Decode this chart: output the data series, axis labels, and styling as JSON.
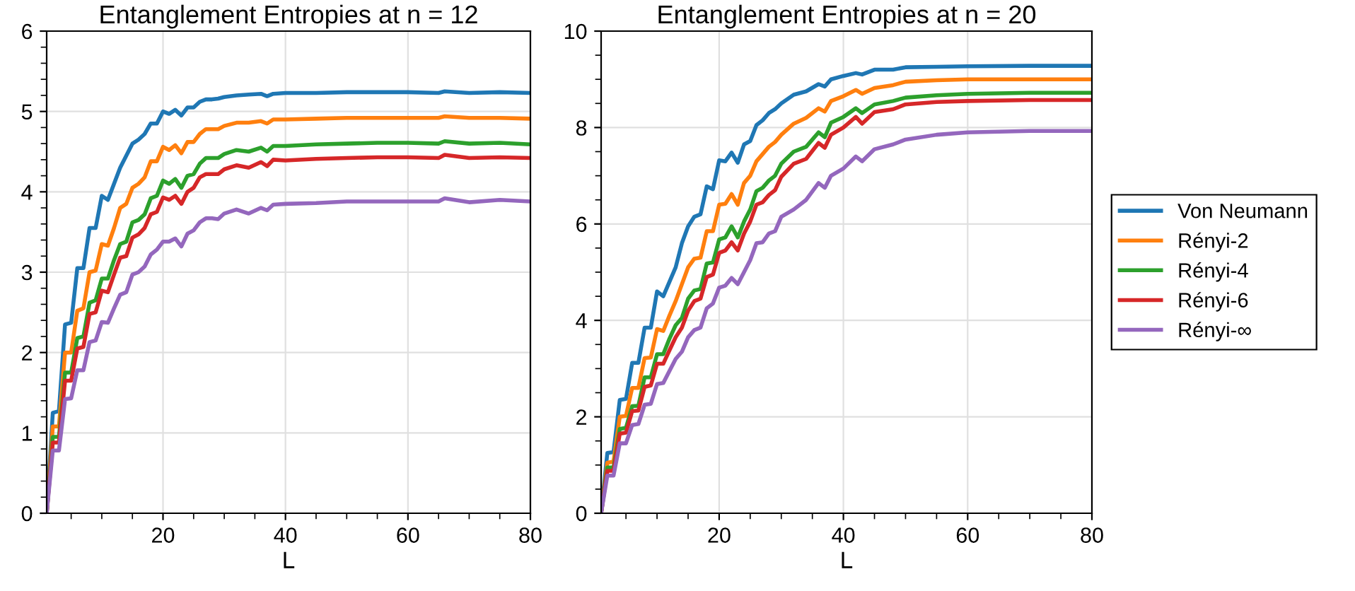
{
  "chart_data": [
    {
      "type": "line",
      "title": "Entanglement Entropies at n = 12",
      "xlabel": "L",
      "x": [
        1,
        2,
        3,
        4,
        5,
        6,
        7,
        8,
        9,
        10,
        11,
        12,
        13,
        14,
        15,
        16,
        17,
        18,
        19,
        20,
        21,
        22,
        23,
        24,
        25,
        26,
        27,
        28,
        29,
        30,
        32,
        34,
        36,
        37,
        38,
        40,
        45,
        50,
        55,
        60,
        65,
        66,
        70,
        75,
        80
      ],
      "xlim": [
        1,
        80
      ],
      "xticks": [
        20,
        40,
        60,
        80
      ],
      "ylim": [
        0,
        6
      ],
      "yticks": [
        0,
        1,
        2,
        3,
        4,
        5,
        6
      ],
      "grid": true,
      "legend": false,
      "line_style": "solid",
      "marker": "none",
      "series": [
        {
          "color": "#1f77b4",
          "values": [
            0,
            1.25,
            1.27,
            2.35,
            2.37,
            3.05,
            3.05,
            3.55,
            3.55,
            3.95,
            3.9,
            4.1,
            4.3,
            4.45,
            4.6,
            4.65,
            4.72,
            4.85,
            4.85,
            5.0,
            4.97,
            5.02,
            4.95,
            5.05,
            5.05,
            5.12,
            5.15,
            5.15,
            5.16,
            5.18,
            5.2,
            5.21,
            5.22,
            5.19,
            5.22,
            5.23,
            5.23,
            5.24,
            5.24,
            5.24,
            5.23,
            5.25,
            5.23,
            5.24,
            5.23
          ]
        },
        {
          "color": "#ff7f0e",
          "values": [
            0,
            1.08,
            1.08,
            2.0,
            2.0,
            2.52,
            2.55,
            3.0,
            3.02,
            3.35,
            3.33,
            3.55,
            3.8,
            3.85,
            4.05,
            4.1,
            4.18,
            4.38,
            4.38,
            4.56,
            4.52,
            4.58,
            4.48,
            4.62,
            4.62,
            4.72,
            4.78,
            4.78,
            4.78,
            4.82,
            4.86,
            4.86,
            4.88,
            4.85,
            4.9,
            4.9,
            4.91,
            4.92,
            4.92,
            4.92,
            4.92,
            4.94,
            4.92,
            4.92,
            4.91
          ]
        },
        {
          "color": "#2ca02c",
          "values": [
            0,
            0.95,
            0.95,
            1.75,
            1.75,
            2.18,
            2.2,
            2.62,
            2.65,
            2.92,
            2.92,
            3.15,
            3.35,
            3.38,
            3.62,
            3.65,
            3.72,
            3.92,
            3.95,
            4.14,
            4.1,
            4.16,
            4.05,
            4.2,
            4.22,
            4.35,
            4.42,
            4.42,
            4.42,
            4.47,
            4.52,
            4.5,
            4.55,
            4.5,
            4.57,
            4.57,
            4.59,
            4.6,
            4.61,
            4.61,
            4.6,
            4.63,
            4.6,
            4.61,
            4.59
          ]
        },
        {
          "color": "#d62728",
          "values": [
            0,
            0.88,
            0.88,
            1.65,
            1.65,
            2.05,
            2.07,
            2.48,
            2.5,
            2.77,
            2.75,
            2.97,
            3.18,
            3.2,
            3.43,
            3.47,
            3.55,
            3.72,
            3.75,
            3.93,
            3.9,
            3.95,
            3.85,
            4.0,
            4.05,
            4.18,
            4.22,
            4.22,
            4.22,
            4.28,
            4.33,
            4.3,
            4.37,
            4.32,
            4.4,
            4.39,
            4.41,
            4.42,
            4.43,
            4.43,
            4.42,
            4.46,
            4.42,
            4.43,
            4.42
          ]
        },
        {
          "color": "#9467bd",
          "values": [
            0,
            0.78,
            0.78,
            1.42,
            1.43,
            1.78,
            1.78,
            2.13,
            2.15,
            2.38,
            2.37,
            2.55,
            2.72,
            2.75,
            2.97,
            3.0,
            3.07,
            3.22,
            3.28,
            3.38,
            3.38,
            3.42,
            3.32,
            3.48,
            3.52,
            3.62,
            3.67,
            3.67,
            3.66,
            3.73,
            3.78,
            3.73,
            3.8,
            3.77,
            3.84,
            3.85,
            3.86,
            3.88,
            3.88,
            3.88,
            3.88,
            3.92,
            3.87,
            3.9,
            3.88
          ]
        }
      ]
    },
    {
      "type": "line",
      "title": "Entanglement Entropies at n = 20",
      "xlabel": "L",
      "x": [
        1,
        2,
        3,
        4,
        5,
        6,
        7,
        8,
        9,
        10,
        11,
        12,
        13,
        14,
        15,
        16,
        17,
        18,
        19,
        20,
        21,
        22,
        23,
        24,
        25,
        26,
        27,
        28,
        29,
        30,
        32,
        34,
        36,
        37,
        38,
        40,
        42,
        43,
        45,
        48,
        50,
        55,
        60,
        70,
        80
      ],
      "xlim": [
        1,
        80
      ],
      "xticks": [
        20,
        40,
        60,
        80
      ],
      "ylim": [
        0,
        10
      ],
      "yticks": [
        0,
        2,
        4,
        6,
        8,
        10
      ],
      "grid": true,
      "legend": "right",
      "line_style": "solid",
      "marker": "none",
      "series": [
        {
          "name": "Von Neumann",
          "color": "#1f77b4",
          "values": [
            0,
            1.25,
            1.27,
            2.35,
            2.37,
            3.12,
            3.12,
            3.85,
            3.85,
            4.6,
            4.5,
            4.8,
            5.1,
            5.6,
            5.95,
            6.15,
            6.2,
            6.78,
            6.72,
            7.32,
            7.3,
            7.48,
            7.27,
            7.65,
            7.72,
            8.05,
            8.15,
            8.3,
            8.38,
            8.5,
            8.68,
            8.75,
            8.9,
            8.85,
            9.0,
            9.07,
            9.13,
            9.1,
            9.2,
            9.2,
            9.25,
            9.26,
            9.27,
            9.28,
            9.28
          ]
        },
        {
          "name": "Rényi-2",
          "color": "#ff7f0e",
          "values": [
            0,
            1.05,
            1.07,
            2.0,
            2.02,
            2.6,
            2.6,
            3.22,
            3.23,
            3.82,
            3.78,
            4.1,
            4.4,
            4.75,
            5.1,
            5.28,
            5.3,
            5.85,
            5.85,
            6.4,
            6.42,
            6.62,
            6.4,
            6.85,
            7.0,
            7.3,
            7.45,
            7.6,
            7.7,
            7.85,
            8.08,
            8.2,
            8.4,
            8.33,
            8.55,
            8.65,
            8.78,
            8.7,
            8.82,
            8.88,
            8.95,
            8.98,
            9.0,
            9.0,
            9.0
          ]
        },
        {
          "name": "Rényi-4",
          "color": "#2ca02c",
          "values": [
            0,
            0.95,
            0.95,
            1.75,
            1.77,
            2.22,
            2.23,
            2.82,
            2.82,
            3.3,
            3.3,
            3.62,
            3.9,
            4.05,
            4.45,
            4.62,
            4.65,
            5.18,
            5.2,
            5.68,
            5.72,
            5.95,
            5.72,
            6.05,
            6.3,
            6.68,
            6.75,
            6.9,
            7.0,
            7.25,
            7.5,
            7.6,
            7.9,
            7.8,
            8.1,
            8.22,
            8.4,
            8.3,
            8.48,
            8.55,
            8.62,
            8.67,
            8.7,
            8.72,
            8.72
          ]
        },
        {
          "name": "Rényi-6",
          "color": "#d62728",
          "values": [
            0,
            0.88,
            0.88,
            1.65,
            1.67,
            2.12,
            2.13,
            2.62,
            2.65,
            3.1,
            3.1,
            3.38,
            3.65,
            3.85,
            4.2,
            4.4,
            4.45,
            4.9,
            4.95,
            5.4,
            5.45,
            5.62,
            5.45,
            5.8,
            6.05,
            6.4,
            6.45,
            6.6,
            6.7,
            6.98,
            7.25,
            7.35,
            7.68,
            7.58,
            7.85,
            8.0,
            8.22,
            8.08,
            8.32,
            8.38,
            8.48,
            8.53,
            8.55,
            8.57,
            8.57
          ]
        },
        {
          "name": "Rényi-∞",
          "color": "#9467bd",
          "values": [
            0,
            0.78,
            0.78,
            1.45,
            1.45,
            1.83,
            1.85,
            2.25,
            2.27,
            2.68,
            2.7,
            2.95,
            3.2,
            3.35,
            3.65,
            3.8,
            3.85,
            4.25,
            4.35,
            4.68,
            4.72,
            4.88,
            4.75,
            5.0,
            5.25,
            5.6,
            5.62,
            5.8,
            5.85,
            6.15,
            6.3,
            6.5,
            6.85,
            6.75,
            7.0,
            7.15,
            7.4,
            7.3,
            7.55,
            7.65,
            7.75,
            7.85,
            7.9,
            7.93,
            7.93
          ]
        }
      ]
    }
  ]
}
